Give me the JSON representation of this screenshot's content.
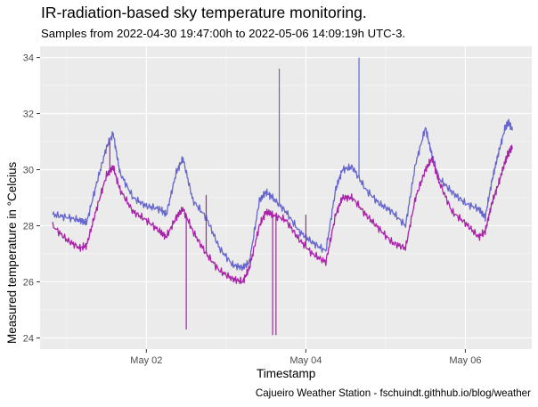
{
  "title": "IR-radiation-based sky temperature monitoring.",
  "subtitle": "Samples from 2022-04-30 19:47:00h to 2022-05-06 14:09:19h UTC-3.",
  "caption": "Cajueiro Weather Station - fschuindt.githhub.io/blog/weather",
  "chart_data": {
    "type": "line",
    "title": "IR-radiation-based sky temperature monitoring.",
    "subtitle": "Samples from 2022-04-30 19:47:00h to 2022-05-06 14:09:19h UTC-3.",
    "xlabel": "Timestamp",
    "ylabel": "Measured temperature in °Celcius",
    "xlim": [
      "2022-04-30T16:00",
      "2022-05-06T20:00"
    ],
    "ylim": [
      23.6,
      34.4
    ],
    "x_ticks": [
      {
        "value": "2022-05-02T00:00",
        "label": "May 02"
      },
      {
        "value": "2022-05-04T00:00",
        "label": "May 04"
      },
      {
        "value": "2022-05-06T00:00",
        "label": "May 06"
      }
    ],
    "y_ticks": [
      24,
      26,
      28,
      30,
      32,
      34
    ],
    "grid": true,
    "legend": "none",
    "series": [
      {
        "color": "#6666cc",
        "points": [
          [
            "2022-04-30T19:47",
            28.4
          ],
          [
            "2022-05-01T00:00",
            28.3
          ],
          [
            "2022-05-01T04:00",
            28.2
          ],
          [
            "2022-05-01T06:00",
            28.1
          ],
          [
            "2022-05-01T09:00",
            29.5
          ],
          [
            "2022-05-01T12:00",
            30.8
          ],
          [
            "2022-05-01T14:00",
            31.3
          ],
          [
            "2022-05-01T16:00",
            29.9
          ],
          [
            "2022-05-01T20:00",
            29.0
          ],
          [
            "2022-05-02T00:00",
            28.7
          ],
          [
            "2022-05-02T04:00",
            28.6
          ],
          [
            "2022-05-02T06:00",
            28.4
          ],
          [
            "2022-05-02T09:00",
            29.9
          ],
          [
            "2022-05-02T11:00",
            30.4
          ],
          [
            "2022-05-02T14:00",
            28.9
          ],
          [
            "2022-05-02T18:00",
            28.3
          ],
          [
            "2022-05-02T22:00",
            27.2
          ],
          [
            "2022-05-03T02:00",
            26.6
          ],
          [
            "2022-05-03T05:00",
            26.5
          ],
          [
            "2022-05-03T07:00",
            26.7
          ],
          [
            "2022-05-03T10:00",
            28.9
          ],
          [
            "2022-05-03T12:00",
            29.2
          ],
          [
            "2022-05-03T14:00",
            29.0
          ],
          [
            "2022-05-03T18:00",
            28.5
          ],
          [
            "2022-05-03T22:00",
            27.8
          ],
          [
            "2022-05-04T02:00",
            27.4
          ],
          [
            "2022-05-04T06:00",
            27.1
          ],
          [
            "2022-05-04T09:00",
            29.3
          ],
          [
            "2022-05-04T11:00",
            30.0
          ],
          [
            "2022-05-04T14:00",
            30.1
          ],
          [
            "2022-05-04T18:00",
            29.3
          ],
          [
            "2022-05-04T22:00",
            28.8
          ],
          [
            "2022-05-05T02:00",
            28.5
          ],
          [
            "2022-05-05T06:00",
            28.0
          ],
          [
            "2022-05-05T09:00",
            30.2
          ],
          [
            "2022-05-05T12:00",
            31.5
          ],
          [
            "2022-05-05T14:00",
            30.5
          ],
          [
            "2022-05-05T16:00",
            29.7
          ],
          [
            "2022-05-05T20:00",
            29.2
          ],
          [
            "2022-05-06T00:00",
            28.8
          ],
          [
            "2022-05-06T04:00",
            28.6
          ],
          [
            "2022-05-06T06:00",
            28.3
          ],
          [
            "2022-05-06T08:00",
            29.6
          ],
          [
            "2022-05-06T10:00",
            30.6
          ],
          [
            "2022-05-06T12:00",
            31.5
          ],
          [
            "2022-05-06T13:00",
            31.7
          ],
          [
            "2022-05-06T14:09",
            31.4
          ]
        ],
        "spikes": [
          {
            "x": "2022-05-01T14:00",
            "y": 31.3
          },
          {
            "x": "2022-05-03T16:00",
            "y": 33.6
          },
          {
            "x": "2022-05-04T16:00",
            "y": 34.0
          }
        ]
      },
      {
        "color": "#aa22aa",
        "points": [
          [
            "2022-04-30T19:47",
            28.0
          ],
          [
            "2022-05-01T00:00",
            27.5
          ],
          [
            "2022-05-01T04:00",
            27.2
          ],
          [
            "2022-05-01T06:00",
            27.3
          ],
          [
            "2022-05-01T09:00",
            28.6
          ],
          [
            "2022-05-01T12:00",
            29.8
          ],
          [
            "2022-05-01T14:00",
            30.1
          ],
          [
            "2022-05-01T16:00",
            29.3
          ],
          [
            "2022-05-01T20:00",
            28.5
          ],
          [
            "2022-05-02T00:00",
            28.2
          ],
          [
            "2022-05-02T04:00",
            27.8
          ],
          [
            "2022-05-02T06:00",
            27.6
          ],
          [
            "2022-05-02T09:00",
            28.3
          ],
          [
            "2022-05-02T11:00",
            28.6
          ],
          [
            "2022-05-02T14:00",
            27.8
          ],
          [
            "2022-05-02T18:00",
            27.0
          ],
          [
            "2022-05-02T22:00",
            26.4
          ],
          [
            "2022-05-03T02:00",
            26.1
          ],
          [
            "2022-05-03T05:00",
            26.0
          ],
          [
            "2022-05-03T07:00",
            26.5
          ],
          [
            "2022-05-03T10:00",
            28.0
          ],
          [
            "2022-05-03T12:00",
            28.5
          ],
          [
            "2022-05-03T14:00",
            28.4
          ],
          [
            "2022-05-03T18:00",
            28.2
          ],
          [
            "2022-05-03T22:00",
            27.5
          ],
          [
            "2022-05-04T02:00",
            27.0
          ],
          [
            "2022-05-04T06:00",
            26.7
          ],
          [
            "2022-05-04T09:00",
            28.4
          ],
          [
            "2022-05-04T11:00",
            29.0
          ],
          [
            "2022-05-04T14:00",
            29.0
          ],
          [
            "2022-05-04T18:00",
            28.4
          ],
          [
            "2022-05-04T22:00",
            27.9
          ],
          [
            "2022-05-05T02:00",
            27.4
          ],
          [
            "2022-05-05T06:00",
            27.2
          ],
          [
            "2022-05-05T09:00",
            29.0
          ],
          [
            "2022-05-05T12:00",
            30.0
          ],
          [
            "2022-05-05T14:00",
            30.4
          ],
          [
            "2022-05-05T16:00",
            29.6
          ],
          [
            "2022-05-05T20:00",
            28.5
          ],
          [
            "2022-05-06T00:00",
            28.1
          ],
          [
            "2022-05-06T04:00",
            27.6
          ],
          [
            "2022-05-06T06:00",
            27.8
          ],
          [
            "2022-05-06T08:00",
            28.8
          ],
          [
            "2022-05-06T10:00",
            29.5
          ],
          [
            "2022-05-06T12:00",
            30.3
          ],
          [
            "2022-05-06T13:00",
            30.6
          ],
          [
            "2022-05-06T14:09",
            30.8
          ]
        ],
        "spikes": [
          {
            "x": "2022-05-01T13:00",
            "y": 31.0
          },
          {
            "x": "2022-05-02T12:00",
            "y": 24.3
          },
          {
            "x": "2022-05-02T18:00",
            "y": 29.1
          },
          {
            "x": "2022-05-03T14:00",
            "y": 24.1
          },
          {
            "x": "2022-05-03T15:00",
            "y": 24.1
          },
          {
            "x": "2022-05-04T00:00",
            "y": 28.4
          }
        ]
      }
    ]
  }
}
